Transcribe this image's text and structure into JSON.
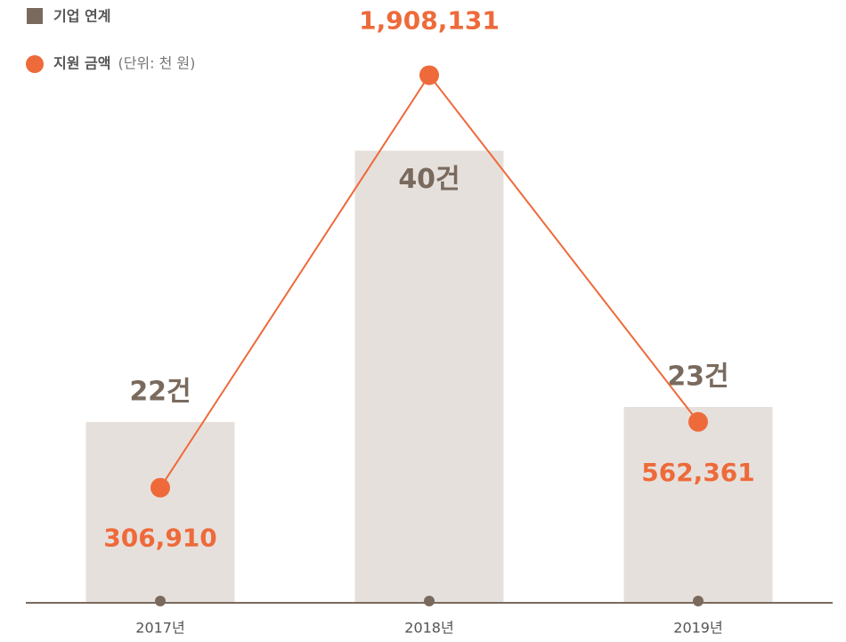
{
  "chart_data": {
    "type": "bar_line",
    "categories": [
      "2017년",
      "2018년",
      "2019년"
    ],
    "series": [
      {
        "name": "기업 연계",
        "type": "bar",
        "color": "#e6e0dc",
        "legend_color": "#7a6a5e",
        "label_color": "#7a6a5e",
        "values": [
          22,
          40,
          23
        ],
        "value_labels": [
          "22건",
          "40건",
          "23건"
        ]
      },
      {
        "name": "지원 금액",
        "type": "line",
        "axis": "y2",
        "color": "#ee6a3a",
        "values": [
          306910,
          1908131,
          562361
        ],
        "value_labels": [
          "306,910",
          "1,908,131",
          "562,361"
        ]
      }
    ],
    "unit_note": "(단위: 천 원)",
    "ylim": [
      10,
      50
    ],
    "y2lim": [
      -140000,
      2200000
    ]
  }
}
